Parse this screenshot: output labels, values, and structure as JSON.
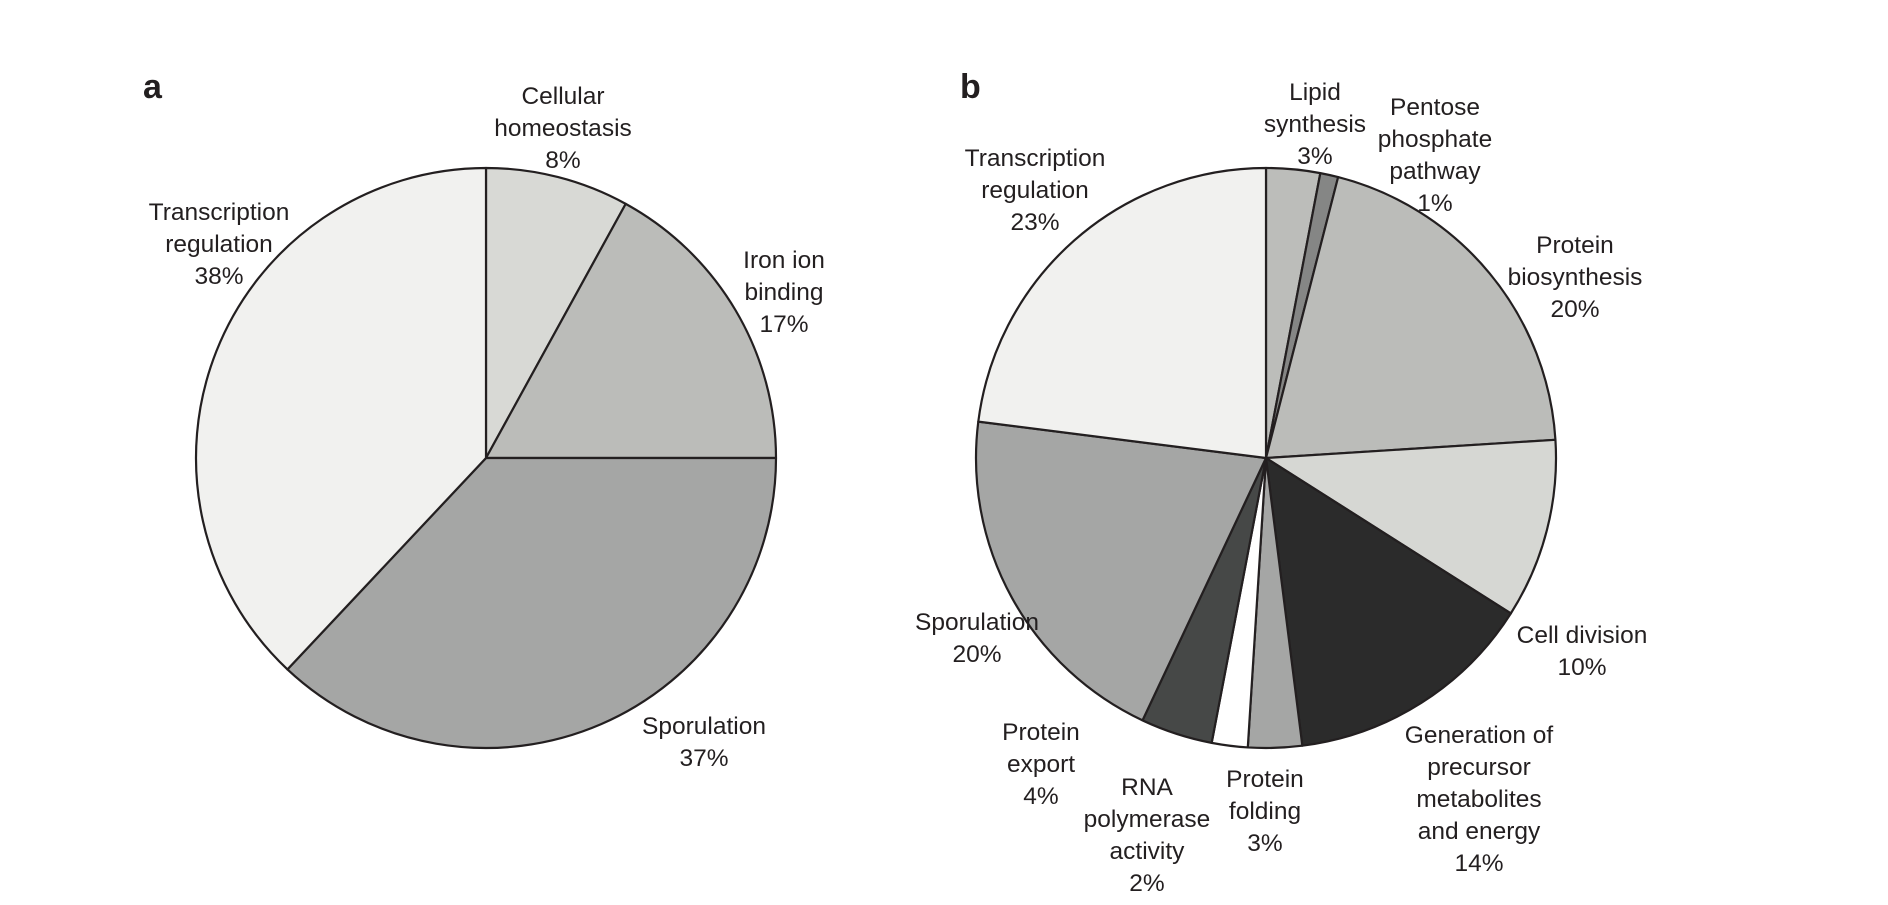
{
  "chart_data": [
    {
      "type": "pie",
      "panel_label": "a",
      "slices": [
        {
          "label_lines": [
            "Cellular",
            "homeostasis"
          ],
          "percent_text": "8%",
          "value": 8,
          "color": "#d8d9d5"
        },
        {
          "label_lines": [
            "Iron ion",
            "binding"
          ],
          "percent_text": "17%",
          "value": 17,
          "color": "#bbbcb9"
        },
        {
          "label_lines": [
            "Sporulation"
          ],
          "percent_text": "37%",
          "value": 37,
          "color": "#a5a6a5"
        },
        {
          "label_lines": [
            "Transcription",
            "regulation"
          ],
          "percent_text": "38%",
          "value": 38,
          "color": "#f1f1ef"
        }
      ]
    },
    {
      "type": "pie",
      "panel_label": "b",
      "slices": [
        {
          "label_lines": [
            "Lipid",
            "synthesis"
          ],
          "percent_text": "3%",
          "value": 3,
          "color": "#bcbdba"
        },
        {
          "label_lines": [
            "Pentose",
            "phosphate",
            "pathway"
          ],
          "percent_text": "1%",
          "value": 1,
          "color": "#858685"
        },
        {
          "label_lines": [
            "Protein",
            "biosynthesis"
          ],
          "percent_text": "20%",
          "value": 20,
          "color": "#bbbcb9"
        },
        {
          "label_lines": [
            "Cell division"
          ],
          "percent_text": "10%",
          "value": 10,
          "color": "#d6d7d3"
        },
        {
          "label_lines": [
            "Generation of",
            "precursor",
            "metabolites",
            "and energy"
          ],
          "percent_text": "14%",
          "value": 14,
          "color": "#2b2b2b"
        },
        {
          "label_lines": [
            "Protein",
            "folding"
          ],
          "percent_text": "3%",
          "value": 3,
          "color": "#a5a6a5"
        },
        {
          "label_lines": [
            "RNA",
            "polymerase",
            "activity"
          ],
          "percent_text": "2%",
          "value": 2,
          "color": "#ffffff"
        },
        {
          "label_lines": [
            "Protein",
            "export"
          ],
          "percent_text": "4%",
          "value": 4,
          "color": "#464847"
        },
        {
          "label_lines": [
            "Sporulation"
          ],
          "percent_text": "20%",
          "value": 20,
          "color": "#a5a6a5"
        },
        {
          "label_lines": [
            "Transcription",
            "regulation"
          ],
          "percent_text": "23%",
          "value": 23,
          "color": "#f1f1ef"
        }
      ]
    }
  ]
}
